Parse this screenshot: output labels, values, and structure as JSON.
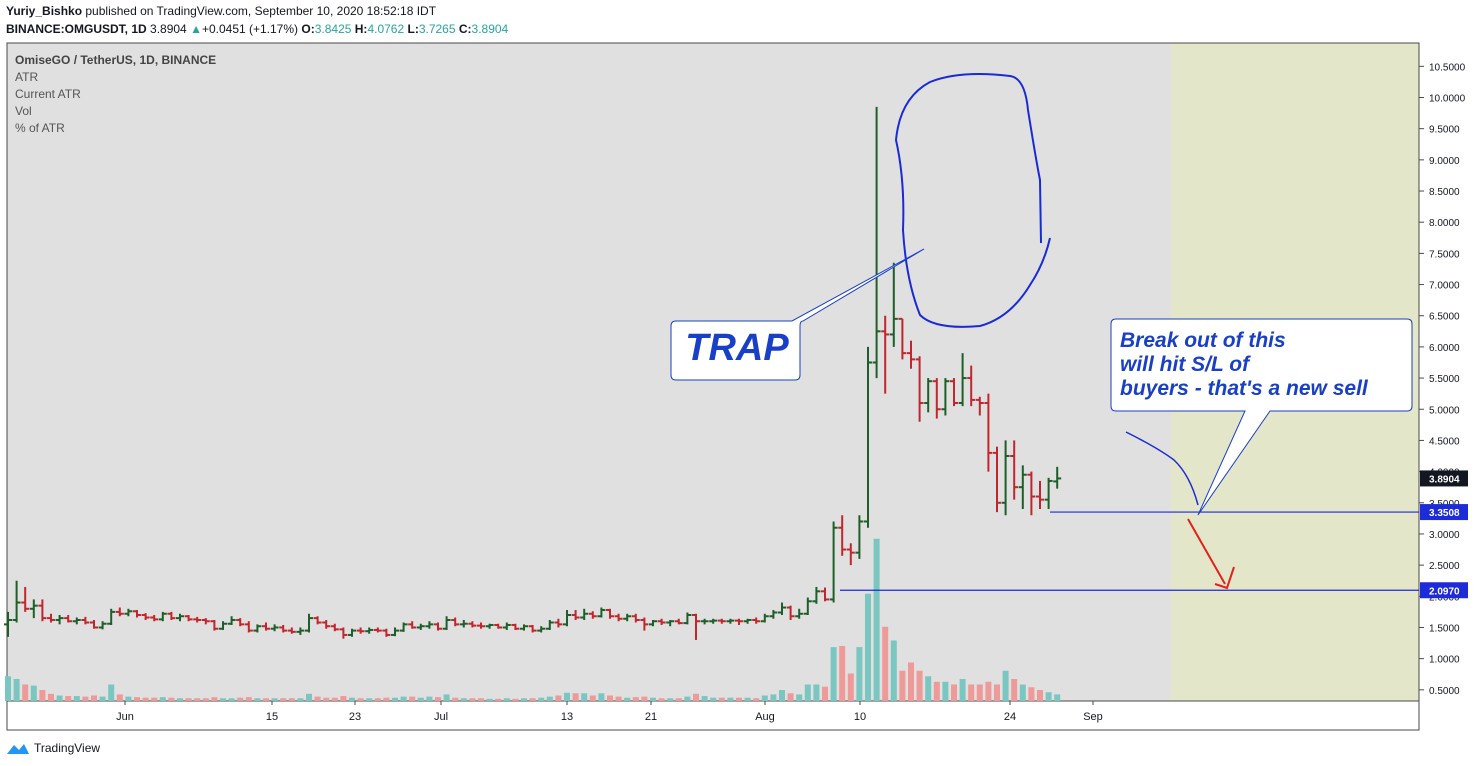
{
  "header": {
    "author": "Yuriy_Bishko",
    "published": "published on TradingView.com, September 10, 2020 18:52:18 IDT",
    "symbol": "BINANCE:OMGUSDT, 1D",
    "price": "3.8904",
    "change": "+0.0451 (+1.17%)",
    "o_label": "O:",
    "o": "3.8425",
    "h_label": "H:",
    "h": "4.0762",
    "l_label": "L:",
    "l": "3.7265",
    "c_label": "C:",
    "c": "3.8904"
  },
  "legend": {
    "title": "OmiseGO / TetherUS, 1D, BINANCE",
    "items": [
      "ATR",
      "Current ATR",
      "Vol",
      "% of ATR"
    ]
  },
  "annotations": {
    "trap": "TRAP",
    "note_line1": "Break out of this",
    "note_line2": "will hit S/L of",
    "note_line3": "buyers - that's a new sell"
  },
  "footer": {
    "brand": "TradingView"
  },
  "colors": {
    "up": "#1e5e29",
    "down": "#c0262c",
    "vol_up": "#7ac7c1",
    "vol_down": "#ee9a98",
    "level": "#1a2bd6",
    "annotation": "#1a3fc7",
    "arrow": "#e3221c",
    "chart_bg": "#e0e0e0",
    "future_bg": "#e3e6c8",
    "label_bg": "#1e2cd8"
  },
  "chart_data": {
    "type": "ohlc bar",
    "title": "OmiseGO / TetherUS, 1D, BINANCE",
    "y_ticks": [
      "10.5000",
      "10.0000",
      "9.5000",
      "9.0000",
      "8.5000",
      "8.0000",
      "7.5000",
      "7.0000",
      "6.5000",
      "6.0000",
      "5.5000",
      "5.0000",
      "4.5000",
      "4.0000",
      "3.5000",
      "3.0000",
      "2.5000",
      "2.0000",
      "1.5000",
      "1.0000",
      "0.5000"
    ],
    "x_ticks": [
      "Jun",
      "15",
      "23",
      "Jul",
      "13",
      "21",
      "Aug",
      "10",
      "24",
      "Sep"
    ],
    "ylim": [
      0.3,
      10.7
    ],
    "price_labels": [
      "3.8904",
      "3.3508",
      "2.0970"
    ],
    "levels": [
      3.3508,
      2.097
    ],
    "bars": [
      {
        "o": 1.55,
        "h": 1.75,
        "l": 1.35,
        "c": 1.62,
        "v": 0.45
      },
      {
        "o": 1.62,
        "h": 2.25,
        "l": 1.58,
        "c": 1.9,
        "v": 0.4
      },
      {
        "o": 1.9,
        "h": 2.15,
        "l": 1.75,
        "c": 1.8,
        "v": 0.3
      },
      {
        "o": 1.8,
        "h": 1.95,
        "l": 1.65,
        "c": 1.85,
        "v": 0.28
      },
      {
        "o": 1.85,
        "h": 1.95,
        "l": 1.6,
        "c": 1.65,
        "v": 0.2
      },
      {
        "o": 1.65,
        "h": 1.72,
        "l": 1.58,
        "c": 1.62,
        "v": 0.13
      },
      {
        "o": 1.62,
        "h": 1.7,
        "l": 1.55,
        "c": 1.65,
        "v": 0.1
      },
      {
        "o": 1.65,
        "h": 1.7,
        "l": 1.58,
        "c": 1.6,
        "v": 0.09
      },
      {
        "o": 1.6,
        "h": 1.66,
        "l": 1.55,
        "c": 1.62,
        "v": 0.09
      },
      {
        "o": 1.62,
        "h": 1.67,
        "l": 1.55,
        "c": 1.58,
        "v": 0.08
      },
      {
        "o": 1.58,
        "h": 1.62,
        "l": 1.48,
        "c": 1.5,
        "v": 0.1
      },
      {
        "o": 1.5,
        "h": 1.6,
        "l": 1.47,
        "c": 1.56,
        "v": 0.08
      },
      {
        "o": 1.56,
        "h": 1.8,
        "l": 1.54,
        "c": 1.75,
        "v": 0.3
      },
      {
        "o": 1.75,
        "h": 1.82,
        "l": 1.68,
        "c": 1.72,
        "v": 0.12
      },
      {
        "o": 1.72,
        "h": 1.8,
        "l": 1.68,
        "c": 1.76,
        "v": 0.08
      },
      {
        "o": 1.76,
        "h": 1.78,
        "l": 1.66,
        "c": 1.7,
        "v": 0.07
      },
      {
        "o": 1.7,
        "h": 1.73,
        "l": 1.62,
        "c": 1.66,
        "v": 0.06
      },
      {
        "o": 1.66,
        "h": 1.7,
        "l": 1.6,
        "c": 1.63,
        "v": 0.06
      },
      {
        "o": 1.63,
        "h": 1.75,
        "l": 1.6,
        "c": 1.72,
        "v": 0.07
      },
      {
        "o": 1.72,
        "h": 1.75,
        "l": 1.62,
        "c": 1.65,
        "v": 0.06
      },
      {
        "o": 1.65,
        "h": 1.72,
        "l": 1.6,
        "c": 1.68,
        "v": 0.05
      },
      {
        "o": 1.68,
        "h": 1.7,
        "l": 1.6,
        "c": 1.63,
        "v": 0.05
      },
      {
        "o": 1.63,
        "h": 1.67,
        "l": 1.58,
        "c": 1.62,
        "v": 0.05
      },
      {
        "o": 1.62,
        "h": 1.65,
        "l": 1.55,
        "c": 1.6,
        "v": 0.05
      },
      {
        "o": 1.6,
        "h": 1.62,
        "l": 1.45,
        "c": 1.48,
        "v": 0.07
      },
      {
        "o": 1.48,
        "h": 1.6,
        "l": 1.46,
        "c": 1.56,
        "v": 0.05
      },
      {
        "o": 1.56,
        "h": 1.68,
        "l": 1.54,
        "c": 1.62,
        "v": 0.05
      },
      {
        "o": 1.62,
        "h": 1.65,
        "l": 1.52,
        "c": 1.55,
        "v": 0.06
      },
      {
        "o": 1.55,
        "h": 1.6,
        "l": 1.42,
        "c": 1.45,
        "v": 0.07
      },
      {
        "o": 1.45,
        "h": 1.55,
        "l": 1.42,
        "c": 1.52,
        "v": 0.05
      },
      {
        "o": 1.52,
        "h": 1.58,
        "l": 1.45,
        "c": 1.48,
        "v": 0.05
      },
      {
        "o": 1.48,
        "h": 1.55,
        "l": 1.44,
        "c": 1.5,
        "v": 0.05
      },
      {
        "o": 1.5,
        "h": 1.54,
        "l": 1.42,
        "c": 1.45,
        "v": 0.05
      },
      {
        "o": 1.45,
        "h": 1.5,
        "l": 1.4,
        "c": 1.43,
        "v": 0.05
      },
      {
        "o": 1.43,
        "h": 1.5,
        "l": 1.38,
        "c": 1.45,
        "v": 0.05
      },
      {
        "o": 1.45,
        "h": 1.72,
        "l": 1.42,
        "c": 1.65,
        "v": 0.13
      },
      {
        "o": 1.65,
        "h": 1.68,
        "l": 1.55,
        "c": 1.58,
        "v": 0.08
      },
      {
        "o": 1.58,
        "h": 1.62,
        "l": 1.48,
        "c": 1.52,
        "v": 0.06
      },
      {
        "o": 1.52,
        "h": 1.56,
        "l": 1.44,
        "c": 1.47,
        "v": 0.06
      },
      {
        "o": 1.47,
        "h": 1.5,
        "l": 1.32,
        "c": 1.38,
        "v": 0.09
      },
      {
        "o": 1.38,
        "h": 1.48,
        "l": 1.35,
        "c": 1.45,
        "v": 0.06
      },
      {
        "o": 1.45,
        "h": 1.5,
        "l": 1.4,
        "c": 1.44,
        "v": 0.05
      },
      {
        "o": 1.44,
        "h": 1.5,
        "l": 1.4,
        "c": 1.46,
        "v": 0.05
      },
      {
        "o": 1.46,
        "h": 1.5,
        "l": 1.42,
        "c": 1.45,
        "v": 0.05
      },
      {
        "o": 1.45,
        "h": 1.48,
        "l": 1.35,
        "c": 1.38,
        "v": 0.06
      },
      {
        "o": 1.38,
        "h": 1.5,
        "l": 1.36,
        "c": 1.45,
        "v": 0.06
      },
      {
        "o": 1.45,
        "h": 1.58,
        "l": 1.43,
        "c": 1.55,
        "v": 0.08
      },
      {
        "o": 1.55,
        "h": 1.6,
        "l": 1.48,
        "c": 1.5,
        "v": 0.08
      },
      {
        "o": 1.5,
        "h": 1.56,
        "l": 1.46,
        "c": 1.52,
        "v": 0.06
      },
      {
        "o": 1.52,
        "h": 1.6,
        "l": 1.48,
        "c": 1.55,
        "v": 0.08
      },
      {
        "o": 1.55,
        "h": 1.58,
        "l": 1.45,
        "c": 1.48,
        "v": 0.07
      },
      {
        "o": 1.48,
        "h": 1.68,
        "l": 1.46,
        "c": 1.62,
        "v": 0.12
      },
      {
        "o": 1.62,
        "h": 1.66,
        "l": 1.52,
        "c": 1.55,
        "v": 0.06
      },
      {
        "o": 1.55,
        "h": 1.62,
        "l": 1.5,
        "c": 1.56,
        "v": 0.05
      },
      {
        "o": 1.56,
        "h": 1.6,
        "l": 1.5,
        "c": 1.53,
        "v": 0.05
      },
      {
        "o": 1.53,
        "h": 1.58,
        "l": 1.48,
        "c": 1.52,
        "v": 0.05
      },
      {
        "o": 1.52,
        "h": 1.56,
        "l": 1.48,
        "c": 1.54,
        "v": 0.04
      },
      {
        "o": 1.54,
        "h": 1.56,
        "l": 1.48,
        "c": 1.5,
        "v": 0.04
      },
      {
        "o": 1.5,
        "h": 1.58,
        "l": 1.46,
        "c": 1.54,
        "v": 0.05
      },
      {
        "o": 1.54,
        "h": 1.56,
        "l": 1.46,
        "c": 1.48,
        "v": 0.04
      },
      {
        "o": 1.48,
        "h": 1.55,
        "l": 1.45,
        "c": 1.52,
        "v": 0.05
      },
      {
        "o": 1.52,
        "h": 1.54,
        "l": 1.42,
        "c": 1.45,
        "v": 0.05
      },
      {
        "o": 1.45,
        "h": 1.52,
        "l": 1.42,
        "c": 1.48,
        "v": 0.06
      },
      {
        "o": 1.48,
        "h": 1.62,
        "l": 1.46,
        "c": 1.58,
        "v": 0.08
      },
      {
        "o": 1.58,
        "h": 1.64,
        "l": 1.5,
        "c": 1.55,
        "v": 0.1
      },
      {
        "o": 1.55,
        "h": 1.78,
        "l": 1.52,
        "c": 1.7,
        "v": 0.15
      },
      {
        "o": 1.7,
        "h": 1.78,
        "l": 1.62,
        "c": 1.66,
        "v": 0.14
      },
      {
        "o": 1.66,
        "h": 1.8,
        "l": 1.62,
        "c": 1.72,
        "v": 0.14
      },
      {
        "o": 1.72,
        "h": 1.76,
        "l": 1.64,
        "c": 1.68,
        "v": 0.1
      },
      {
        "o": 1.68,
        "h": 1.82,
        "l": 1.66,
        "c": 1.78,
        "v": 0.14
      },
      {
        "o": 1.78,
        "h": 1.8,
        "l": 1.64,
        "c": 1.68,
        "v": 0.1
      },
      {
        "o": 1.68,
        "h": 1.72,
        "l": 1.6,
        "c": 1.64,
        "v": 0.08
      },
      {
        "o": 1.64,
        "h": 1.72,
        "l": 1.6,
        "c": 1.68,
        "v": 0.06
      },
      {
        "o": 1.68,
        "h": 1.72,
        "l": 1.58,
        "c": 1.62,
        "v": 0.07
      },
      {
        "o": 1.62,
        "h": 1.66,
        "l": 1.45,
        "c": 1.55,
        "v": 0.08
      },
      {
        "o": 1.55,
        "h": 1.62,
        "l": 1.52,
        "c": 1.6,
        "v": 0.06
      },
      {
        "o": 1.6,
        "h": 1.64,
        "l": 1.54,
        "c": 1.58,
        "v": 0.05
      },
      {
        "o": 1.58,
        "h": 1.62,
        "l": 1.52,
        "c": 1.6,
        "v": 0.05
      },
      {
        "o": 1.6,
        "h": 1.64,
        "l": 1.55,
        "c": 1.57,
        "v": 0.05
      },
      {
        "o": 1.57,
        "h": 1.74,
        "l": 1.55,
        "c": 1.7,
        "v": 0.08
      },
      {
        "o": 1.7,
        "h": 1.72,
        "l": 1.3,
        "c": 1.6,
        "v": 0.13
      },
      {
        "o": 1.6,
        "h": 1.64,
        "l": 1.55,
        "c": 1.6,
        "v": 0.09
      },
      {
        "o": 1.6,
        "h": 1.64,
        "l": 1.56,
        "c": 1.61,
        "v": 0.06
      },
      {
        "o": 1.61,
        "h": 1.64,
        "l": 1.56,
        "c": 1.6,
        "v": 0.06
      },
      {
        "o": 1.6,
        "h": 1.64,
        "l": 1.56,
        "c": 1.61,
        "v": 0.06
      },
      {
        "o": 1.61,
        "h": 1.64,
        "l": 1.54,
        "c": 1.6,
        "v": 0.06
      },
      {
        "o": 1.6,
        "h": 1.64,
        "l": 1.56,
        "c": 1.62,
        "v": 0.06
      },
      {
        "o": 1.62,
        "h": 1.66,
        "l": 1.56,
        "c": 1.6,
        "v": 0.05
      },
      {
        "o": 1.6,
        "h": 1.72,
        "l": 1.58,
        "c": 1.68,
        "v": 0.1
      },
      {
        "o": 1.68,
        "h": 1.78,
        "l": 1.64,
        "c": 1.74,
        "v": 0.12
      },
      {
        "o": 1.74,
        "h": 1.9,
        "l": 1.7,
        "c": 1.82,
        "v": 0.2
      },
      {
        "o": 1.82,
        "h": 1.85,
        "l": 1.62,
        "c": 1.68,
        "v": 0.14
      },
      {
        "o": 1.68,
        "h": 1.8,
        "l": 1.64,
        "c": 1.72,
        "v": 0.12
      },
      {
        "o": 1.72,
        "h": 1.98,
        "l": 1.7,
        "c": 1.92,
        "v": 0.3
      },
      {
        "o": 1.92,
        "h": 2.15,
        "l": 1.88,
        "c": 2.08,
        "v": 0.3
      },
      {
        "o": 2.08,
        "h": 2.14,
        "l": 1.92,
        "c": 1.95,
        "v": 0.26
      },
      {
        "o": 1.95,
        "h": 3.2,
        "l": 1.9,
        "c": 3.1,
        "v": 0.98
      },
      {
        "o": 3.1,
        "h": 3.3,
        "l": 2.65,
        "c": 2.75,
        "v": 1.0
      },
      {
        "o": 2.75,
        "h": 2.85,
        "l": 2.5,
        "c": 2.7,
        "v": 0.5
      },
      {
        "o": 2.7,
        "h": 3.3,
        "l": 2.6,
        "c": 3.2,
        "v": 0.98
      },
      {
        "o": 3.2,
        "h": 6.0,
        "l": 3.1,
        "c": 5.75,
        "v": 1.95
      },
      {
        "o": 5.75,
        "h": 9.85,
        "l": 5.5,
        "c": 6.25,
        "v": 2.95
      },
      {
        "o": 6.25,
        "h": 6.5,
        "l": 5.25,
        "c": 6.2,
        "v": 1.35
      },
      {
        "o": 6.2,
        "h": 7.35,
        "l": 6.0,
        "c": 6.45,
        "v": 1.1
      },
      {
        "o": 6.45,
        "h": 6.45,
        "l": 5.8,
        "c": 5.9,
        "v": 0.55
      },
      {
        "o": 5.9,
        "h": 6.1,
        "l": 5.65,
        "c": 5.8,
        "v": 0.7
      },
      {
        "o": 5.8,
        "h": 5.85,
        "l": 4.8,
        "c": 5.1,
        "v": 0.55
      },
      {
        "o": 5.1,
        "h": 5.5,
        "l": 4.95,
        "c": 5.45,
        "v": 0.45
      },
      {
        "o": 5.45,
        "h": 5.5,
        "l": 4.85,
        "c": 5.0,
        "v": 0.35
      },
      {
        "o": 5.0,
        "h": 5.5,
        "l": 4.9,
        "c": 5.45,
        "v": 0.35
      },
      {
        "o": 5.45,
        "h": 5.5,
        "l": 5.05,
        "c": 5.1,
        "v": 0.3
      },
      {
        "o": 5.1,
        "h": 5.9,
        "l": 5.05,
        "c": 5.5,
        "v": 0.4
      },
      {
        "o": 5.5,
        "h": 5.7,
        "l": 5.05,
        "c": 5.15,
        "v": 0.3
      },
      {
        "o": 5.15,
        "h": 5.2,
        "l": 4.9,
        "c": 5.1,
        "v": 0.3
      },
      {
        "o": 5.1,
        "h": 5.25,
        "l": 4.0,
        "c": 4.3,
        "v": 0.35
      },
      {
        "o": 4.3,
        "h": 4.4,
        "l": 3.35,
        "c": 3.5,
        "v": 0.3
      },
      {
        "o": 3.5,
        "h": 4.5,
        "l": 3.3,
        "c": 4.25,
        "v": 0.55
      },
      {
        "o": 4.25,
        "h": 4.5,
        "l": 3.55,
        "c": 3.75,
        "v": 0.4
      },
      {
        "o": 3.75,
        "h": 4.1,
        "l": 3.4,
        "c": 3.95,
        "v": 0.3
      },
      {
        "o": 3.95,
        "h": 4.0,
        "l": 3.3,
        "c": 3.6,
        "v": 0.25
      },
      {
        "o": 3.6,
        "h": 3.85,
        "l": 3.4,
        "c": 3.55,
        "v": 0.2
      },
      {
        "o": 3.55,
        "h": 3.9,
        "l": 3.4,
        "c": 3.85,
        "v": 0.16
      },
      {
        "o": 3.8425,
        "h": 4.0762,
        "l": 3.7265,
        "c": 3.8904,
        "v": 0.12
      }
    ]
  }
}
